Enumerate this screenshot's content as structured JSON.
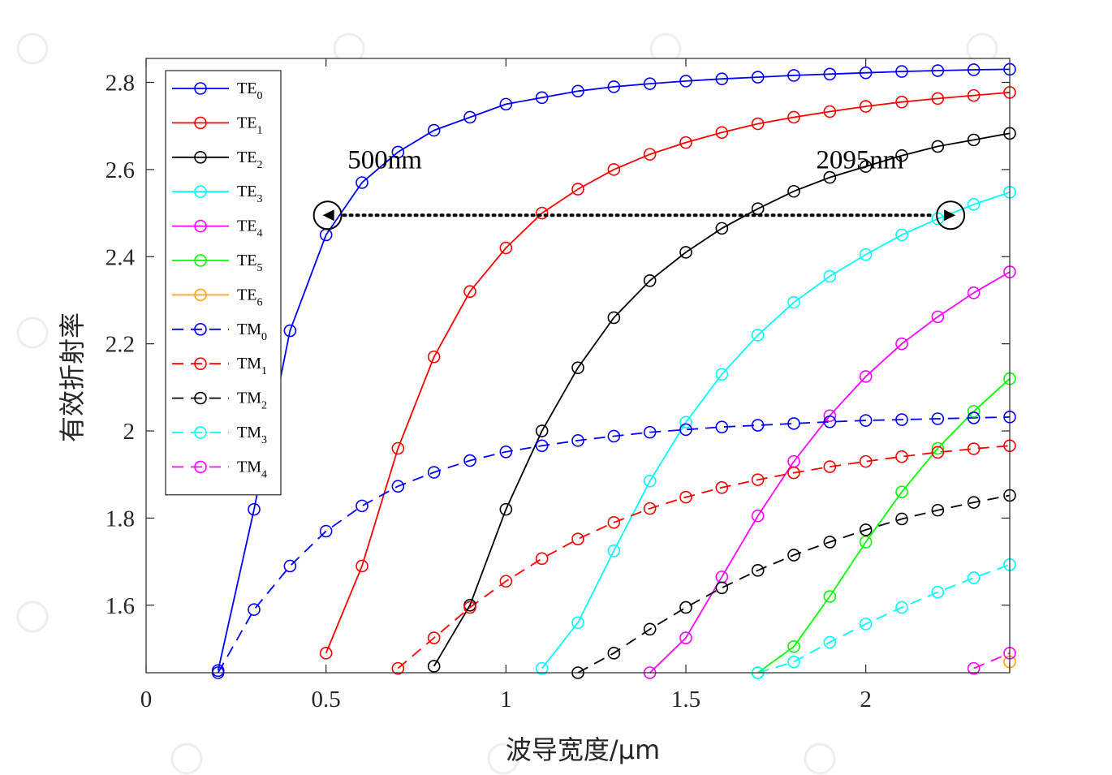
{
  "chart_data": {
    "type": "line",
    "xlabel": "波导宽度/μm",
    "ylabel": "有效折射率",
    "xlim": [
      0,
      2.4
    ],
    "ylim": [
      1.445,
      2.855
    ],
    "xticks": [
      0,
      0.5,
      1,
      1.5,
      2
    ],
    "yticks": [
      1.6,
      1.8,
      2,
      2.2,
      2.4,
      2.6,
      2.8
    ],
    "xtick_labels": [
      "0",
      "0.5",
      "1",
      "1.5",
      "2"
    ],
    "ytick_labels": [
      "1.6",
      "1.8",
      "2",
      "2.2",
      "2.4",
      "2.6",
      "2.8"
    ],
    "grid": false,
    "legend_position": "top-left",
    "series": [
      {
        "name": "TE",
        "sub": "0",
        "color": "#0000ff",
        "dash": "solid",
        "x": [
          0.2,
          0.3,
          0.4,
          0.5,
          0.6,
          0.7,
          0.8,
          0.9,
          1.0,
          1.1,
          1.2,
          1.3,
          1.4,
          1.5,
          1.6,
          1.7,
          1.8,
          1.9,
          2.0,
          2.1,
          2.2,
          2.3,
          2.4
        ],
        "y": [
          1.45,
          1.82,
          2.23,
          2.45,
          2.57,
          2.64,
          2.69,
          2.72,
          2.75,
          2.765,
          2.78,
          2.79,
          2.797,
          2.803,
          2.808,
          2.812,
          2.816,
          2.819,
          2.822,
          2.825,
          2.827,
          2.829,
          2.83
        ]
      },
      {
        "name": "TE",
        "sub": "1",
        "color": "#ff0000",
        "dash": "solid",
        "x": [
          0.5,
          0.6,
          0.7,
          0.8,
          0.9,
          1.0,
          1.1,
          1.2,
          1.3,
          1.4,
          1.5,
          1.6,
          1.7,
          1.8,
          1.9,
          2.0,
          2.1,
          2.2,
          2.3,
          2.4
        ],
        "y": [
          1.49,
          1.69,
          1.96,
          2.17,
          2.32,
          2.42,
          2.5,
          2.555,
          2.6,
          2.635,
          2.662,
          2.685,
          2.705,
          2.72,
          2.733,
          2.745,
          2.755,
          2.763,
          2.77,
          2.777
        ]
      },
      {
        "name": "TE",
        "sub": "2",
        "color": "#000000",
        "dash": "solid",
        "x": [
          0.8,
          0.9,
          1.0,
          1.1,
          1.2,
          1.3,
          1.4,
          1.5,
          1.6,
          1.7,
          1.8,
          1.9,
          2.0,
          2.1,
          2.2,
          2.3,
          2.4
        ],
        "y": [
          1.46,
          1.6,
          1.82,
          2.0,
          2.145,
          2.26,
          2.345,
          2.41,
          2.465,
          2.51,
          2.55,
          2.582,
          2.607,
          2.632,
          2.653,
          2.668,
          2.683
        ]
      },
      {
        "name": "TE",
        "sub": "3",
        "color": "#00ffff",
        "dash": "solid",
        "x": [
          1.1,
          1.2,
          1.3,
          1.4,
          1.5,
          1.6,
          1.7,
          1.8,
          1.9,
          2.0,
          2.1,
          2.2,
          2.3,
          2.4
        ],
        "y": [
          1.455,
          1.56,
          1.725,
          1.885,
          2.02,
          2.13,
          2.22,
          2.295,
          2.355,
          2.405,
          2.45,
          2.487,
          2.52,
          2.548
        ]
      },
      {
        "name": "TE",
        "sub": "4",
        "color": "#ff00ff",
        "dash": "solid",
        "x": [
          1.4,
          1.5,
          1.6,
          1.7,
          1.8,
          1.9,
          2.0,
          2.1,
          2.2,
          2.3,
          2.4
        ],
        "y": [
          1.445,
          1.525,
          1.665,
          1.805,
          1.93,
          2.035,
          2.125,
          2.2,
          2.262,
          2.317,
          2.365
        ]
      },
      {
        "name": "TE",
        "sub": "5",
        "color": "#00ff00",
        "dash": "solid",
        "x": [
          1.7,
          1.8,
          1.9,
          2.0,
          2.1,
          2.2,
          2.3,
          2.4
        ],
        "y": [
          1.445,
          1.505,
          1.62,
          1.745,
          1.86,
          1.96,
          2.045,
          2.12
        ]
      },
      {
        "name": "TE",
        "sub": "6",
        "color": "#ffa500",
        "dash": "solid",
        "x": [
          2.4
        ],
        "y": [
          1.47
        ]
      },
      {
        "name": "TM",
        "sub": "0",
        "color": "#0000ff",
        "dash": "dashed",
        "x": [
          0.2,
          0.3,
          0.4,
          0.5,
          0.6,
          0.7,
          0.8,
          0.9,
          1.0,
          1.1,
          1.2,
          1.3,
          1.4,
          1.5,
          1.6,
          1.7,
          1.8,
          1.9,
          2.0,
          2.1,
          2.2,
          2.3,
          2.4
        ],
        "y": [
          1.445,
          1.59,
          1.69,
          1.77,
          1.828,
          1.873,
          1.905,
          1.932,
          1.952,
          1.966,
          1.978,
          1.988,
          1.997,
          2.003,
          2.009,
          2.013,
          2.017,
          2.021,
          2.024,
          2.026,
          2.028,
          2.03,
          2.032
        ]
      },
      {
        "name": "TM",
        "sub": "1",
        "color": "#ff0000",
        "dash": "dashed",
        "x": [
          0.7,
          0.8,
          0.9,
          1.0,
          1.1,
          1.2,
          1.3,
          1.4,
          1.5,
          1.6,
          1.7,
          1.8,
          1.9,
          2.0,
          2.1,
          2.2,
          2.3,
          2.4
        ],
        "y": [
          1.455,
          1.525,
          1.595,
          1.655,
          1.707,
          1.752,
          1.79,
          1.822,
          1.848,
          1.87,
          1.888,
          1.904,
          1.918,
          1.93,
          1.941,
          1.951,
          1.959,
          1.966
        ]
      },
      {
        "name": "TM",
        "sub": "2",
        "color": "#000000",
        "dash": "dashed",
        "x": [
          1.2,
          1.3,
          1.4,
          1.5,
          1.6,
          1.7,
          1.8,
          1.9,
          2.0,
          2.1,
          2.2,
          2.3,
          2.4
        ],
        "y": [
          1.445,
          1.49,
          1.545,
          1.595,
          1.64,
          1.68,
          1.715,
          1.745,
          1.773,
          1.798,
          1.818,
          1.836,
          1.852
        ]
      },
      {
        "name": "TM",
        "sub": "3",
        "color": "#00ffff",
        "dash": "dashed",
        "x": [
          1.7,
          1.8,
          1.9,
          2.0,
          2.1,
          2.2,
          2.3,
          2.4
        ],
        "y": [
          1.445,
          1.47,
          1.515,
          1.557,
          1.595,
          1.63,
          1.663,
          1.693
        ]
      },
      {
        "name": "TM",
        "sub": "4",
        "color": "#ff00ff",
        "dash": "dashed",
        "x": [
          2.3,
          2.4
        ],
        "y": [
          1.455,
          1.49
        ]
      }
    ],
    "annotations": [
      {
        "text": "500nm",
        "x": 0.56,
        "y": 2.58
      },
      {
        "text": "2095nm",
        "x": 2.2,
        "y": 2.58
      }
    ],
    "arrow": {
      "x_start": 0.545,
      "x_end": 2.195,
      "y": 2.495,
      "style": "dotted",
      "heads": "both"
    }
  }
}
